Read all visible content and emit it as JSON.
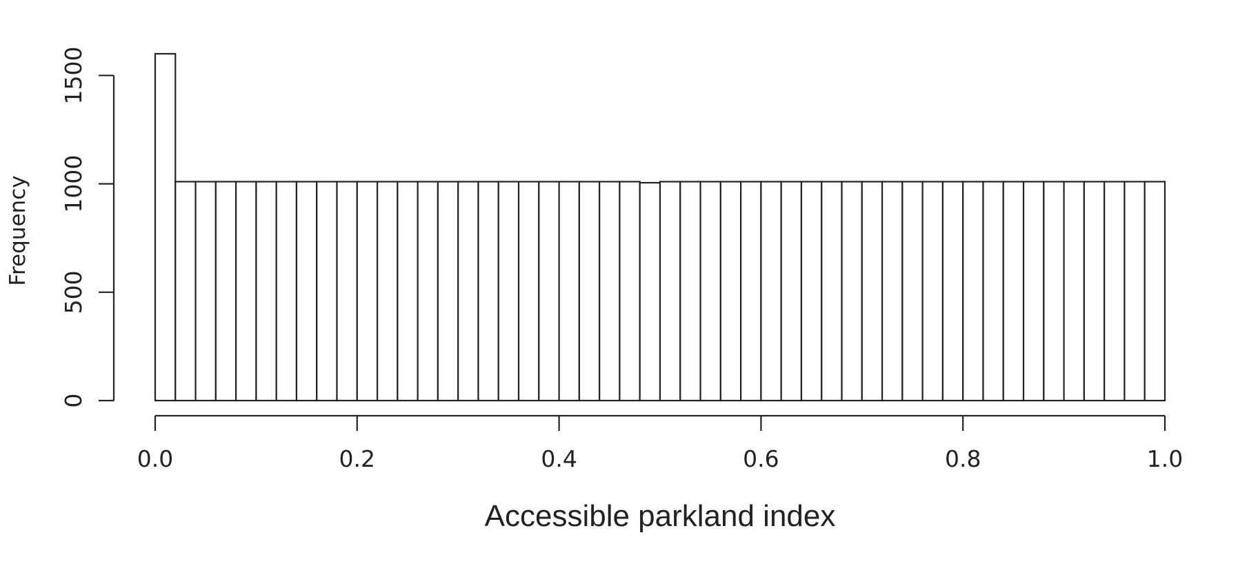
{
  "chart_data": {
    "type": "bar",
    "title": "",
    "xlabel": "Accessible parkland index",
    "ylabel": "Frequency",
    "xlim": [
      0,
      1
    ],
    "ylim": [
      0,
      1600
    ],
    "bin_width": 0.02,
    "bin_start": 0,
    "values": [
      1600,
      1010,
      1010,
      1010,
      1010,
      1010,
      1010,
      1010,
      1010,
      1010,
      1010,
      1010,
      1010,
      1010,
      1010,
      1010,
      1010,
      1010,
      1010,
      1010,
      1010,
      1010,
      1010,
      1010,
      1005,
      1010,
      1010,
      1010,
      1010,
      1010,
      1010,
      1010,
      1010,
      1010,
      1010,
      1010,
      1010,
      1010,
      1010,
      1010,
      1010,
      1010,
      1010,
      1010,
      1010,
      1010,
      1010,
      1010,
      1010,
      1010
    ],
    "x_ticks": [
      0.0,
      0.2,
      0.4,
      0.6,
      0.8,
      1.0
    ],
    "x_tick_labels": [
      "0.0",
      "0.2",
      "0.4",
      "0.6",
      "0.8",
      "1.0"
    ],
    "y_ticks": [
      0,
      500,
      1000,
      1500
    ],
    "y_tick_labels": [
      "0",
      "500",
      "1000",
      "1500"
    ],
    "grid": false,
    "legend": "none",
    "colors": {
      "bar_fill": "#ffffff",
      "stroke": "#222222"
    }
  }
}
